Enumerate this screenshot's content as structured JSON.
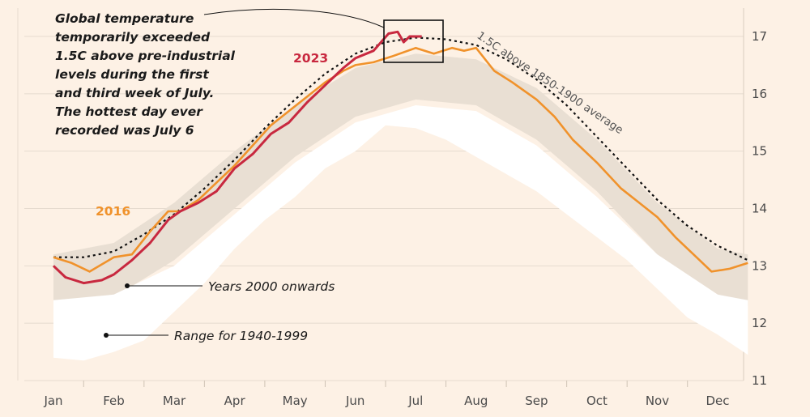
{
  "chart_data": {
    "type": "line",
    "x_axis_ticks": [
      "Jan",
      "Feb",
      "Mar",
      "Apr",
      "May",
      "Jun",
      "Jul",
      "Aug",
      "Sep",
      "Oct",
      "Nov",
      "Dec"
    ],
    "y_axis_ticks": [
      11,
      12,
      13,
      14,
      15,
      16,
      17
    ],
    "ylim": [
      11,
      17.2
    ],
    "grid": true,
    "series": [
      {
        "name": "2023",
        "color": "#c8283f",
        "month_values": [
          [
            0.0,
            13.0
          ],
          [
            0.2,
            12.8
          ],
          [
            0.5,
            12.7
          ],
          [
            0.8,
            12.75
          ],
          [
            1.0,
            12.85
          ],
          [
            1.3,
            13.1
          ],
          [
            1.6,
            13.4
          ],
          [
            1.9,
            13.8
          ],
          [
            2.1,
            13.95
          ],
          [
            2.4,
            14.1
          ],
          [
            2.7,
            14.3
          ],
          [
            3.0,
            14.7
          ],
          [
            3.3,
            14.95
          ],
          [
            3.6,
            15.3
          ],
          [
            3.9,
            15.5
          ],
          [
            4.2,
            15.85
          ],
          [
            4.5,
            16.15
          ],
          [
            4.8,
            16.45
          ],
          [
            5.0,
            16.62
          ],
          [
            5.3,
            16.75
          ],
          [
            5.55,
            17.05
          ],
          [
            5.7,
            17.08
          ],
          [
            5.8,
            16.9
          ],
          [
            5.9,
            17.0
          ],
          [
            6.1,
            17.0
          ]
        ]
      },
      {
        "name": "2016",
        "color": "#f0922b",
        "month_values": [
          [
            0.0,
            13.15
          ],
          [
            0.3,
            13.05
          ],
          [
            0.6,
            12.9
          ],
          [
            1.0,
            13.15
          ],
          [
            1.3,
            13.2
          ],
          [
            1.6,
            13.6
          ],
          [
            1.9,
            13.95
          ],
          [
            2.1,
            13.95
          ],
          [
            2.4,
            14.15
          ],
          [
            2.7,
            14.45
          ],
          [
            3.0,
            14.75
          ],
          [
            3.3,
            15.1
          ],
          [
            3.6,
            15.45
          ],
          [
            3.9,
            15.7
          ],
          [
            4.2,
            15.95
          ],
          [
            4.5,
            16.2
          ],
          [
            4.8,
            16.4
          ],
          [
            5.0,
            16.5
          ],
          [
            5.3,
            16.55
          ],
          [
            5.6,
            16.65
          ],
          [
            6.0,
            16.8
          ],
          [
            6.3,
            16.7
          ],
          [
            6.6,
            16.8
          ],
          [
            6.8,
            16.75
          ],
          [
            7.0,
            16.8
          ],
          [
            7.3,
            16.4
          ],
          [
            7.6,
            16.2
          ],
          [
            8.0,
            15.9
          ],
          [
            8.3,
            15.6
          ],
          [
            8.6,
            15.2
          ],
          [
            9.0,
            14.8
          ],
          [
            9.4,
            14.35
          ],
          [
            9.7,
            14.1
          ],
          [
            10.0,
            13.85
          ],
          [
            10.3,
            13.5
          ],
          [
            10.6,
            13.2
          ],
          [
            10.9,
            12.9
          ],
          [
            11.2,
            12.95
          ],
          [
            11.5,
            13.05
          ]
        ]
      },
      {
        "name": "1.5C above 1850-1900 average",
        "color": "#111111",
        "month_values": [
          [
            0.0,
            13.15
          ],
          [
            0.5,
            13.15
          ],
          [
            1.0,
            13.25
          ],
          [
            1.5,
            13.55
          ],
          [
            2.0,
            13.9
          ],
          [
            2.5,
            14.35
          ],
          [
            3.0,
            14.85
          ],
          [
            3.5,
            15.4
          ],
          [
            4.0,
            15.9
          ],
          [
            4.5,
            16.35
          ],
          [
            5.0,
            16.7
          ],
          [
            5.5,
            16.9
          ],
          [
            6.0,
            16.98
          ],
          [
            6.5,
            16.95
          ],
          [
            7.0,
            16.85
          ],
          [
            7.5,
            16.6
          ],
          [
            8.0,
            16.25
          ],
          [
            8.5,
            15.8
          ],
          [
            9.0,
            15.25
          ],
          [
            9.5,
            14.7
          ],
          [
            10.0,
            14.15
          ],
          [
            10.5,
            13.7
          ],
          [
            11.0,
            13.35
          ],
          [
            11.5,
            13.1
          ]
        ]
      }
    ],
    "bands": [
      {
        "label": "Years 2000 onwards",
        "color": "#e9dfd3",
        "upper": [
          [
            0.0,
            13.2
          ],
          [
            1.0,
            13.4
          ],
          [
            2.0,
            14.1
          ],
          [
            3.0,
            15.0
          ],
          [
            4.0,
            15.8
          ],
          [
            5.0,
            16.45
          ],
          [
            6.0,
            16.7
          ],
          [
            7.0,
            16.6
          ],
          [
            8.0,
            16.1
          ],
          [
            9.0,
            15.2
          ],
          [
            10.0,
            14.1
          ],
          [
            11.0,
            13.3
          ],
          [
            11.5,
            13.2
          ]
        ],
        "lower": [
          [
            0.0,
            12.3
          ],
          [
            1.0,
            12.45
          ],
          [
            2.0,
            13.1
          ],
          [
            3.0,
            14.0
          ],
          [
            4.0,
            14.9
          ],
          [
            5.0,
            15.6
          ],
          [
            6.0,
            15.9
          ],
          [
            7.0,
            15.8
          ],
          [
            8.0,
            15.2
          ],
          [
            9.0,
            14.3
          ],
          [
            10.0,
            13.2
          ],
          [
            11.0,
            12.5
          ],
          [
            11.5,
            12.3
          ]
        ]
      },
      {
        "label": "Range for 1940-1999",
        "color": "#ffffff",
        "upper": [
          [
            0.0,
            12.4
          ],
          [
            1.0,
            12.5
          ],
          [
            2.0,
            13.0
          ],
          [
            3.0,
            13.9
          ],
          [
            4.0,
            14.8
          ],
          [
            5.0,
            15.5
          ],
          [
            6.0,
            15.8
          ],
          [
            7.0,
            15.7
          ],
          [
            8.0,
            15.1
          ],
          [
            9.0,
            14.2
          ],
          [
            10.0,
            13.2
          ],
          [
            11.0,
            12.5
          ],
          [
            11.5,
            12.4
          ]
        ],
        "lower": [
          [
            0.0,
            11.4
          ],
          [
            0.5,
            11.35
          ],
          [
            1.0,
            11.5
          ],
          [
            1.5,
            11.7
          ],
          [
            2.0,
            12.2
          ],
          [
            2.5,
            12.7
          ],
          [
            3.0,
            13.3
          ],
          [
            3.5,
            13.8
          ],
          [
            4.0,
            14.2
          ],
          [
            4.5,
            14.7
          ],
          [
            5.0,
            15.0
          ],
          [
            5.5,
            15.45
          ],
          [
            6.0,
            15.4
          ],
          [
            6.5,
            15.2
          ],
          [
            7.0,
            14.9
          ],
          [
            7.5,
            14.6
          ],
          [
            8.0,
            14.3
          ],
          [
            8.5,
            13.9
          ],
          [
            9.0,
            13.5
          ],
          [
            9.5,
            13.1
          ],
          [
            10.0,
            12.6
          ],
          [
            10.5,
            12.1
          ],
          [
            11.0,
            11.8
          ],
          [
            11.5,
            11.45
          ]
        ]
      }
    ],
    "annotations": {
      "headline": [
        "Global temperature",
        "temporarily exceeded",
        "1.5C above pre-industrial",
        "levels during the first",
        "and third week of July.",
        "The hottest day ever",
        "recorded was July 6"
      ],
      "label_2023": "2023",
      "label_2016": "2016",
      "curve_label": "1.5C above 1850-1900 average",
      "band_2000": "Years 2000 onwards",
      "band_1940": "Range for 1940-1999"
    }
  }
}
